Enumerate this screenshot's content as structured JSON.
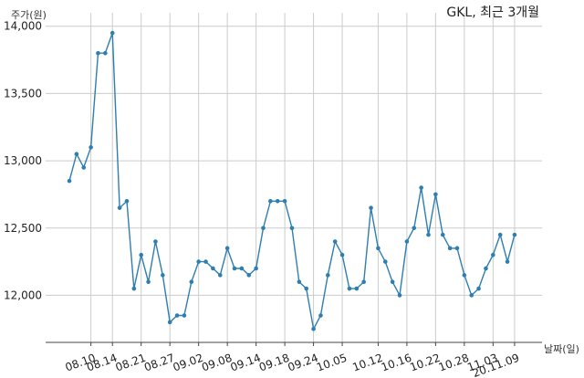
{
  "chart_data": {
    "type": "line",
    "title": "GKL, 최근 3개월",
    "ylabel": "주가(원)",
    "xlabel": "날짜(일)",
    "ylim": [
      11650,
      14100
    ],
    "yticks": [
      12000,
      12500,
      13000,
      13500,
      14000
    ],
    "ytick_labels": [
      "12,000",
      "12,500",
      "13,000",
      "13,500",
      "14,000"
    ],
    "xtick_labels": [
      "08.10",
      "08.14",
      "08.21",
      "08.27",
      "09.02",
      "09.08",
      "09.14",
      "09.18",
      "09.24",
      "10.05",
      "10.12",
      "10.16",
      "10.22",
      "10.28",
      "11.03",
      "20.11.09"
    ],
    "xtick_index": [
      3,
      6,
      10,
      14,
      18,
      22,
      26,
      30,
      34,
      38,
      43,
      47,
      51,
      55,
      59,
      62
    ],
    "grid": true,
    "color": "#2e7eb0",
    "series": [
      {
        "values": [
          12850,
          13050,
          12950,
          13100,
          13800,
          13800,
          13950,
          12650,
          12700,
          12050,
          12300,
          12100,
          12400,
          12150,
          11800,
          11850,
          11850,
          12100,
          12250,
          12250,
          12200,
          12150,
          12350,
          12200,
          12200,
          12150,
          12200,
          12500,
          12700,
          12700,
          12700,
          12500,
          12100,
          12050,
          11750,
          11850,
          12150,
          12400,
          12300,
          12050,
          12050,
          12100,
          12650,
          12350,
          12250,
          12100,
          12000,
          12400,
          12500,
          12800,
          12450,
          12750,
          12450,
          12350,
          12350,
          12150,
          12000,
          12050,
          12200,
          12300,
          12450,
          12250,
          12450
        ]
      }
    ]
  }
}
